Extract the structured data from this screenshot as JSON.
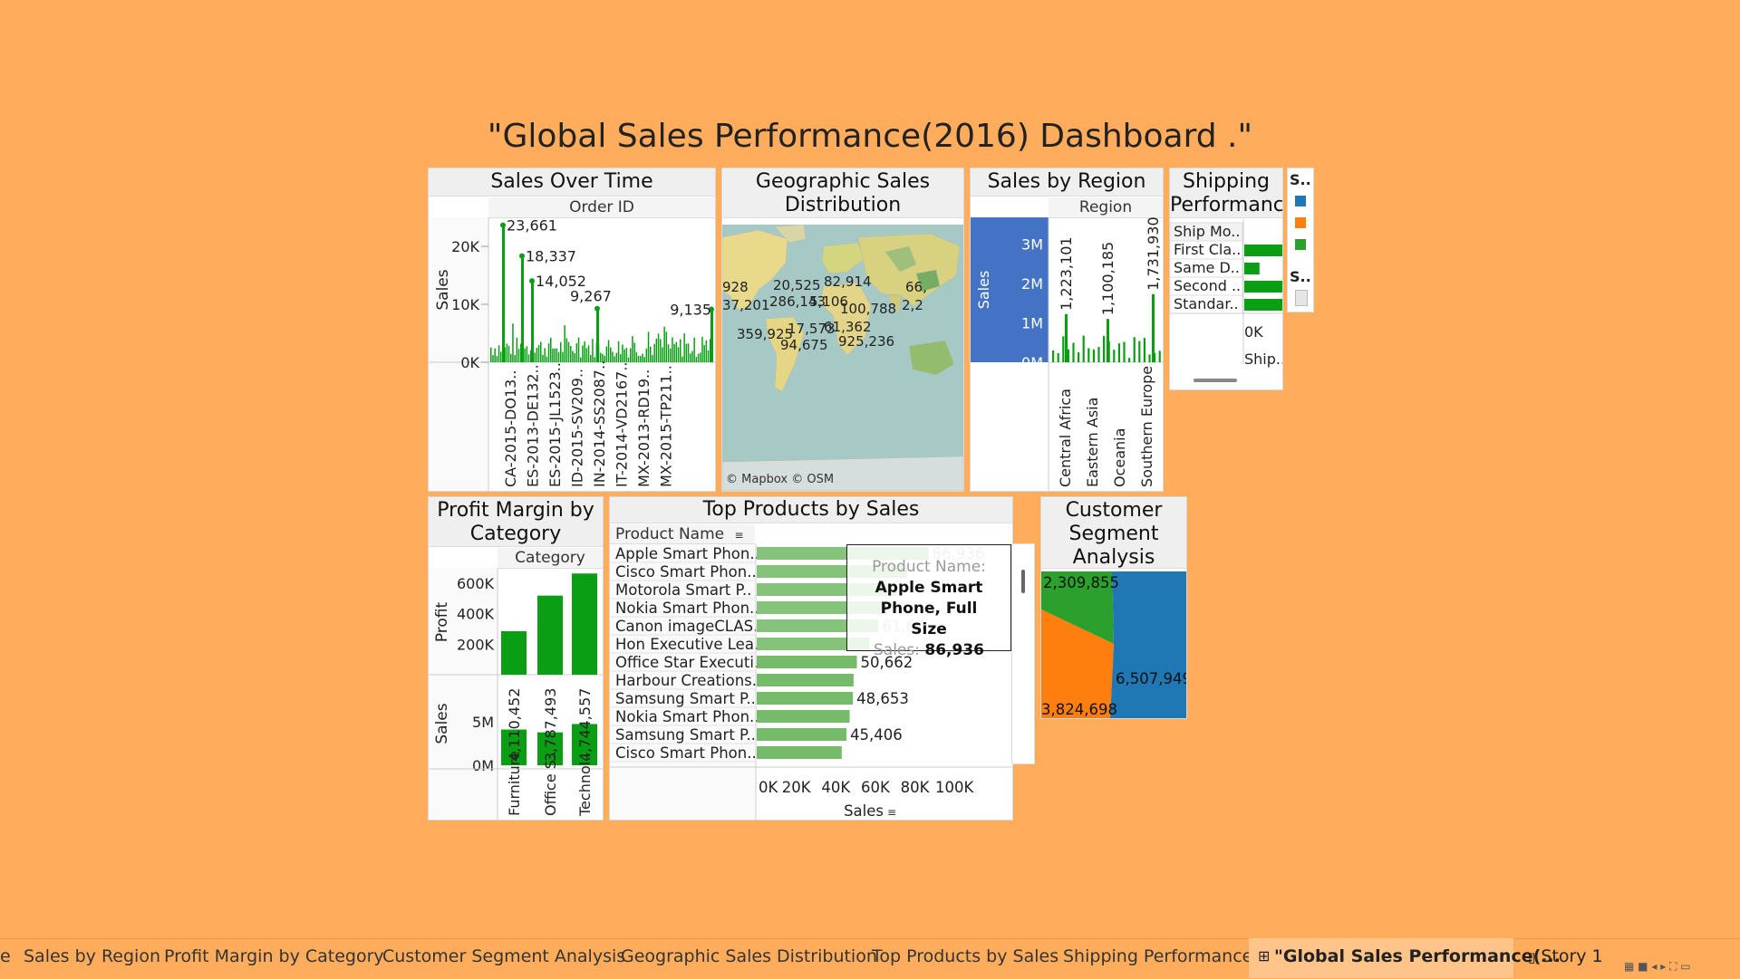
{
  "dashboard_title": "\"Global Sales Performance(2016) Dashboard .\"",
  "colors": {
    "background": "#FFAD5C",
    "bar_green": "#0A9E14",
    "light_green": "#7FC46E",
    "blue": "#1F77B4",
    "orange": "#FF7F0E",
    "sel_blue": "#4472C4"
  },
  "sales_over_time": {
    "title": "Sales Over Time",
    "column_header": "Order ID",
    "ylabel": "Sales",
    "yticks": [
      "20K",
      "10K",
      "0K"
    ],
    "labels": [
      "23,661",
      "18,337",
      "14,052",
      "9,267",
      "9,135"
    ],
    "xticks": [
      "CA-2015-DO13..",
      "ES-2013-DE132..",
      "ES-2015-JL1523..",
      "ID-2015-SV209..",
      "IN-2014-SS2087..",
      "IT-2014-VD2167..",
      "MX-2013-RD19..",
      "MX-2015-TP211.."
    ]
  },
  "geo": {
    "title": "Geographic Sales Distribution",
    "labels": [
      "20,525",
      "82,914",
      "928",
      "286,143",
      "5,106",
      "100,788",
      "66,",
      "2,2",
      "37,201",
      "17,573",
      "61,362",
      "359,925",
      "94,675",
      "925,236"
    ],
    "attribution": "© Mapbox © OSM"
  },
  "region": {
    "title": "Sales by Region",
    "column_header": "Region",
    "ylabel": "Sales",
    "yticks": [
      "3M",
      "2M",
      "1M",
      "0M"
    ],
    "value_labels": [
      "1,223,101",
      "1,100,185",
      "1,731,930"
    ],
    "xticks": [
      "Central Africa",
      "Eastern Asia",
      "Oceania",
      "Southern Europe"
    ]
  },
  "shipping": {
    "title": "Shipping Performanc",
    "rows": [
      "Ship Mo..",
      "First Cla..",
      "Same D..",
      "Second ..",
      "Standar.."
    ],
    "axis_tick": "0K",
    "axis_label": "Ship.."
  },
  "legend": {
    "label1": "S..",
    "label2": "S.."
  },
  "profit": {
    "title": "Profit Margin by Category",
    "column_header": "Category",
    "profit_label": "Profit",
    "profit_ticks": [
      "600K",
      "400K",
      "200K"
    ],
    "sales_label": "Sales",
    "sales_ticks": [
      "5M",
      "0M"
    ],
    "sales_labels": [
      "4,110,452",
      "3,787,493",
      "4,744,557"
    ],
    "xticks": [
      "Furniture",
      "Office S..",
      "Technol.."
    ]
  },
  "products": {
    "title": "Top Products by Sales",
    "column_header": "Product Name",
    "rows": [
      "Apple Smart Phon..",
      "Cisco Smart Phon..",
      "Motorola Smart P..",
      "Nokia Smart Phon..",
      "Canon imageCLAS..",
      "Hon Executive Lea..",
      "Office Star Executi..",
      "Harbour Creations..",
      "Samsung Smart P..",
      "Nokia Smart Phon..",
      "Samsung Smart P..",
      "Cisco Smart Phon.."
    ],
    "value_labels": [
      "86,936",
      "61,60",
      "50,662",
      "48,653",
      "45,406"
    ],
    "xticks": [
      "0K",
      "20K",
      "40K",
      "60K",
      "80K",
      "100K"
    ],
    "xlabel": "Sales",
    "tooltip": {
      "field1": "Product Name:",
      "value1": "Apple Smart Phone, Full Size",
      "field2": "Sales:",
      "value2": "86,936"
    }
  },
  "segment": {
    "title": "Customer Segment Analysis",
    "labels": [
      "2,309,855",
      "6,507,949",
      "3,824,698"
    ]
  },
  "chart_data": [
    {
      "type": "bar",
      "title": "Sales Over Time",
      "ylabel": "Sales",
      "ylim": [
        0,
        25000
      ],
      "values": [
        23661,
        18337,
        14052,
        9267,
        9135
      ]
    },
    {
      "type": "bar",
      "title": "Sales by Region",
      "ylabel": "Sales",
      "ylim": [
        0,
        3500000
      ],
      "categories": [
        "Central Africa",
        "Eastern Asia",
        "Oceania",
        "Southern Europe"
      ],
      "values": [
        1223101,
        1100185,
        1731930,
        1200000
      ]
    },
    {
      "type": "bar",
      "title": "Shipping Performanc",
      "categories": [
        "First Cla..",
        "Same D..",
        "Second ..",
        "Standar.."
      ],
      "values": [
        1.0,
        0.4,
        1.0,
        1.0
      ]
    },
    {
      "type": "bar",
      "title": "Profit Margin by Category",
      "categories": [
        "Furniture",
        "Office S..",
        "Technol.."
      ],
      "series": [
        {
          "name": "Profit",
          "values": [
            285000,
            518000,
            663000
          ]
        },
        {
          "name": "Sales",
          "values": [
            4110452,
            3787493,
            4744557
          ]
        }
      ],
      "ylim": [
        0,
        700000
      ]
    },
    {
      "type": "bar",
      "title": "Top Products by Sales",
      "xlabel": "Sales",
      "xlim": [
        0,
        110000
      ],
      "categories": [
        "Apple Smart Phon..",
        "Cisco Smart Phon..",
        "Motorola Smart P..",
        "Nokia Smart Phon..",
        "Canon imageCLAS..",
        "Hon Executive Lea..",
        "Office Star Executi..",
        "Harbour Creations..",
        "Samsung Smart P..",
        "Nokia Smart Phon..",
        "Samsung Smart P..",
        "Cisco Smart Phon.."
      ],
      "values": [
        86936,
        76000,
        71000,
        66000,
        61600,
        57000,
        50662,
        49000,
        48653,
        47000,
        45406,
        43000
      ]
    },
    {
      "type": "area",
      "title": "Customer Segment Analysis",
      "categories": [
        "green",
        "blue",
        "orange"
      ],
      "values": [
        2309855,
        6507949,
        3824698
      ]
    }
  ],
  "tabs": [
    "e",
    "Sales by Region",
    "Profit Margin by Category",
    "Customer Segment Analysis",
    "Geographic Sales Distribution",
    "Top Products by Sales",
    "Shipping Performance",
    "\"Global Sales Performance(...",
    "Story 1"
  ]
}
